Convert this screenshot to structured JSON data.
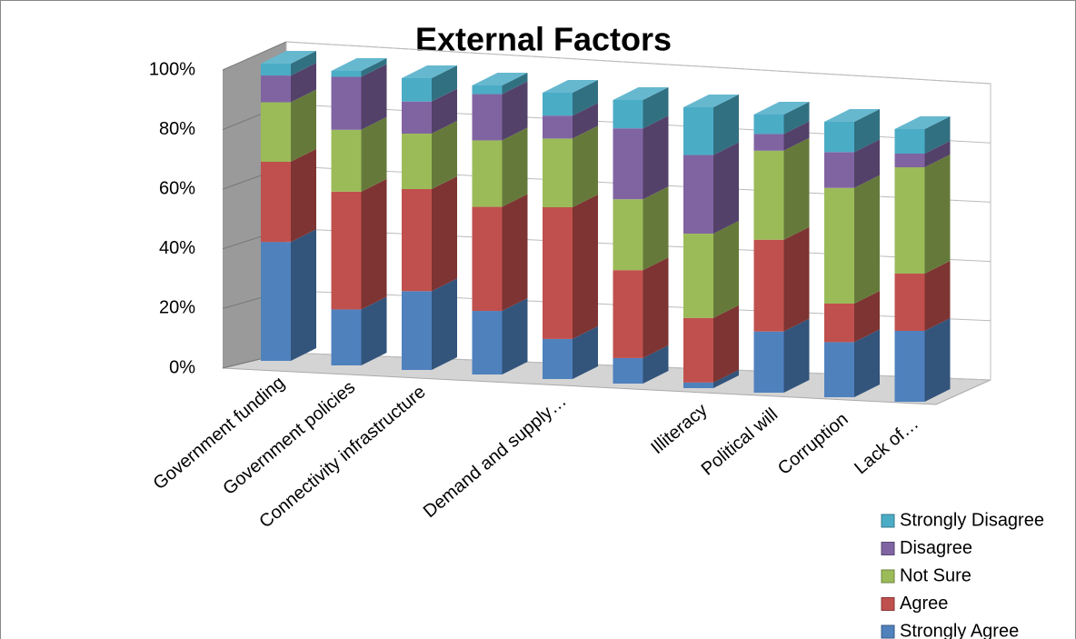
{
  "chart_data": {
    "type": "bar3d_stacked",
    "title": "External Factors",
    "categories": [
      "Government funding",
      "Government policies",
      "Connectivity infrastructure",
      null,
      "Demand and supply…",
      null,
      "Illiteracy",
      "Political will",
      "Corruption",
      "Lack of…"
    ],
    "series": [
      {
        "name": "Strongly Agree",
        "color": "#4f81bd",
        "values": [
          40,
          19,
          27,
          22,
          14,
          9,
          2,
          22,
          20,
          26
        ]
      },
      {
        "name": "Agree",
        "color": "#c0504d",
        "values": [
          27,
          40,
          35,
          36,
          46,
          31,
          23,
          33,
          14,
          21
        ]
      },
      {
        "name": "Not Sure",
        "color": "#9bbb59",
        "values": [
          20,
          21,
          19,
          23,
          24,
          25,
          30,
          32,
          42,
          39
        ]
      },
      {
        "name": "Disagree",
        "color": "#8064a2",
        "values": [
          9,
          18,
          11,
          16,
          8,
          25,
          28,
          6,
          13,
          5
        ]
      },
      {
        "name": "Strongly Disagree",
        "color": "#4bacc6",
        "values": [
          4,
          2,
          8,
          3,
          8,
          10,
          17,
          7,
          11,
          9
        ]
      }
    ],
    "ylim": [
      0,
      100
    ],
    "yticks": [
      {
        "value": 0,
        "label": "0%"
      },
      {
        "value": 20,
        "label": "20%"
      },
      {
        "value": 40,
        "label": "40%"
      },
      {
        "value": 60,
        "label": "60%"
      },
      {
        "value": 80,
        "label": "80%"
      },
      {
        "value": 100,
        "label": "100%"
      }
    ],
    "grid": true
  }
}
